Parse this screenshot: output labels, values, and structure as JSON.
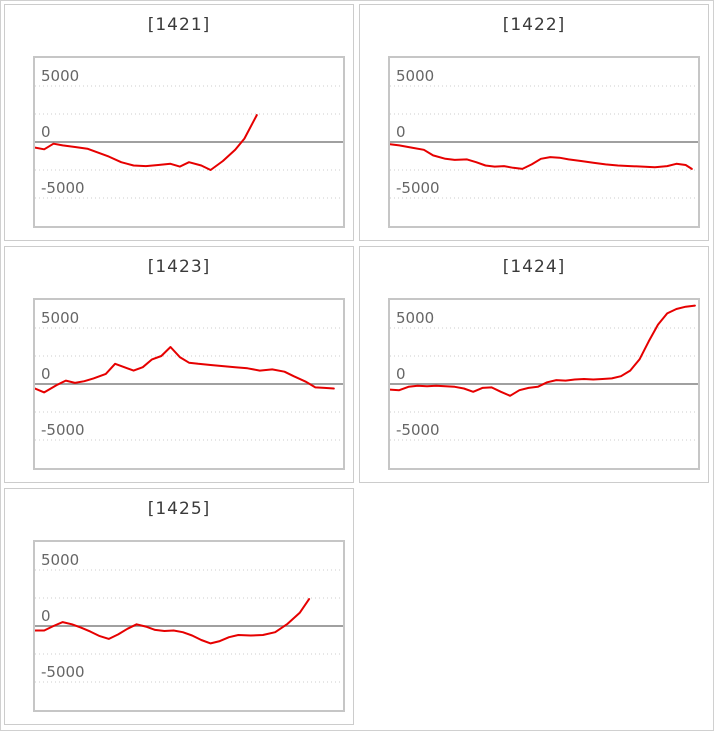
{
  "page": {
    "background": "#ffffff",
    "outer_border_color": "#d0d0d0",
    "panel_border_color": "#cccccc",
    "chart_border_color": "#c6c6c6"
  },
  "chart_defaults": {
    "ylim": [
      -7500,
      7500
    ],
    "gridline_values": [
      5000,
      2500,
      -2500,
      -5000
    ],
    "zero_line_value": 0,
    "axis_labels": [
      "5000",
      "0",
      "-5000"
    ],
    "axis_label_values": [
      5000,
      0,
      -5000
    ],
    "line_color": "#e60000",
    "zero_line_color": "#808080",
    "grid_color": "#cccccc",
    "label_color": "#666666",
    "grid_style": "dotted",
    "legend": "none"
  },
  "chart_data": [
    {
      "type": "line",
      "title": "[1421]",
      "xlabel": "",
      "ylabel": "",
      "points": [
        [
          0,
          -500
        ],
        [
          3,
          -650
        ],
        [
          6,
          -150
        ],
        [
          9,
          -300
        ],
        [
          13,
          -450
        ],
        [
          17,
          -600
        ],
        [
          20,
          -900
        ],
        [
          24,
          -1300
        ],
        [
          28,
          -1800
        ],
        [
          32,
          -2100
        ],
        [
          36,
          -2150
        ],
        [
          40,
          -2050
        ],
        [
          44,
          -1950
        ],
        [
          47,
          -2200
        ],
        [
          50,
          -1800
        ],
        [
          54,
          -2100
        ],
        [
          57,
          -2500
        ],
        [
          61,
          -1700
        ],
        [
          65,
          -700
        ],
        [
          68,
          300
        ],
        [
          72,
          2400
        ]
      ]
    },
    {
      "type": "line",
      "title": "[1422]",
      "xlabel": "",
      "ylabel": "",
      "points": [
        [
          0,
          -200
        ],
        [
          3,
          -300
        ],
        [
          7,
          -500
        ],
        [
          11,
          -700
        ],
        [
          14,
          -1200
        ],
        [
          18,
          -1500
        ],
        [
          21,
          -1600
        ],
        [
          25,
          -1550
        ],
        [
          28,
          -1800
        ],
        [
          31,
          -2100
        ],
        [
          34,
          -2200
        ],
        [
          37,
          -2150
        ],
        [
          40,
          -2300
        ],
        [
          43,
          -2400
        ],
        [
          46,
          -2000
        ],
        [
          49,
          -1500
        ],
        [
          52,
          -1350
        ],
        [
          55,
          -1400
        ],
        [
          58,
          -1550
        ],
        [
          62,
          -1700
        ],
        [
          66,
          -1850
        ],
        [
          70,
          -2000
        ],
        [
          74,
          -2100
        ],
        [
          78,
          -2150
        ],
        [
          82,
          -2200
        ],
        [
          86,
          -2250
        ],
        [
          90,
          -2150
        ],
        [
          93,
          -1950
        ],
        [
          96,
          -2050
        ],
        [
          98,
          -2400
        ]
      ]
    },
    {
      "type": "line",
      "title": "[1423]",
      "xlabel": "",
      "ylabel": "",
      "points": [
        [
          0,
          -400
        ],
        [
          3,
          -750
        ],
        [
          7,
          -100
        ],
        [
          10,
          300
        ],
        [
          13,
          100
        ],
        [
          16,
          250
        ],
        [
          19,
          500
        ],
        [
          23,
          900
        ],
        [
          26,
          1800
        ],
        [
          29,
          1500
        ],
        [
          32,
          1200
        ],
        [
          35,
          1500
        ],
        [
          38,
          2200
        ],
        [
          41,
          2500
        ],
        [
          44,
          3300
        ],
        [
          47,
          2400
        ],
        [
          50,
          1900
        ],
        [
          53,
          1800
        ],
        [
          57,
          1700
        ],
        [
          61,
          1600
        ],
        [
          65,
          1500
        ],
        [
          69,
          1400
        ],
        [
          73,
          1200
        ],
        [
          77,
          1300
        ],
        [
          81,
          1100
        ],
        [
          84,
          700
        ],
        [
          88,
          200
        ],
        [
          91,
          -300
        ],
        [
          94,
          -350
        ],
        [
          97,
          -400
        ]
      ]
    },
    {
      "type": "line",
      "title": "[1424]",
      "xlabel": "",
      "ylabel": "",
      "points": [
        [
          0,
          -500
        ],
        [
          3,
          -550
        ],
        [
          6,
          -250
        ],
        [
          9,
          -150
        ],
        [
          12,
          -200
        ],
        [
          15,
          -150
        ],
        [
          18,
          -200
        ],
        [
          21,
          -250
        ],
        [
          24,
          -400
        ],
        [
          27,
          -700
        ],
        [
          30,
          -350
        ],
        [
          33,
          -300
        ],
        [
          36,
          -700
        ],
        [
          39,
          -1050
        ],
        [
          42,
          -550
        ],
        [
          45,
          -350
        ],
        [
          48,
          -250
        ],
        [
          51,
          150
        ],
        [
          54,
          350
        ],
        [
          57,
          300
        ],
        [
          60,
          400
        ],
        [
          63,
          450
        ],
        [
          66,
          400
        ],
        [
          69,
          450
        ],
        [
          72,
          500
        ],
        [
          75,
          700
        ],
        [
          78,
          1200
        ],
        [
          81,
          2200
        ],
        [
          84,
          3800
        ],
        [
          87,
          5300
        ],
        [
          90,
          6300
        ],
        [
          93,
          6700
        ],
        [
          96,
          6900
        ],
        [
          99,
          7000
        ]
      ]
    },
    {
      "type": "line",
      "title": "[1425]",
      "xlabel": "",
      "ylabel": "",
      "points": [
        [
          0,
          -400
        ],
        [
          3,
          -400
        ],
        [
          6,
          0
        ],
        [
          9,
          350
        ],
        [
          12,
          150
        ],
        [
          15,
          -150
        ],
        [
          18,
          -500
        ],
        [
          21,
          -900
        ],
        [
          24,
          -1150
        ],
        [
          27,
          -750
        ],
        [
          30,
          -250
        ],
        [
          33,
          150
        ],
        [
          36,
          -50
        ],
        [
          39,
          -350
        ],
        [
          42,
          -450
        ],
        [
          45,
          -400
        ],
        [
          48,
          -550
        ],
        [
          51,
          -850
        ],
        [
          54,
          -1250
        ],
        [
          57,
          -1550
        ],
        [
          60,
          -1350
        ],
        [
          63,
          -1000
        ],
        [
          66,
          -800
        ],
        [
          70,
          -850
        ],
        [
          74,
          -800
        ],
        [
          78,
          -550
        ],
        [
          82,
          200
        ],
        [
          86,
          1200
        ],
        [
          89,
          2400
        ]
      ]
    }
  ]
}
